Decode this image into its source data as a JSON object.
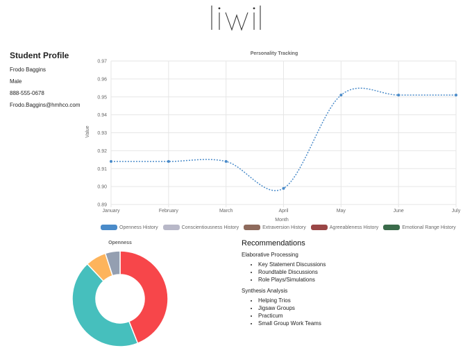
{
  "profile": {
    "title": "Student Profile",
    "name": "Frodo Baggins",
    "gender": "Male",
    "phone": "888-555-0678",
    "email": "Frodo.Baggins@hmhco.com"
  },
  "legend": [
    {
      "label": "Openness History",
      "color": "#4a8bc9"
    },
    {
      "label": "Conscientiousness History",
      "color": "#b8b8c8"
    },
    {
      "label": "Extraversion History",
      "color": "#8e6a5c"
    },
    {
      "label": "Agreeableness History",
      "color": "#9a4646"
    },
    {
      "label": "Emotional Range History",
      "color": "#3a6b4a"
    }
  ],
  "recommendations": {
    "title": "Recommendations",
    "groups": [
      {
        "name": "Elaborative Processing",
        "items": [
          "Key Statement Discussions",
          "Roundtable Discussions",
          "Role Plays/Simulations"
        ]
      },
      {
        "name": "Synthesis Analysis",
        "items": [
          "Helping Trios",
          "Jigsaw Groups",
          "Practicum",
          "Small Group Work Teams"
        ]
      }
    ]
  },
  "chart_data": [
    {
      "type": "line",
      "title": "Personality Tracking",
      "xlabel": "Month",
      "ylabel": "Value",
      "categories": [
        "January",
        "February",
        "March",
        "April",
        "May",
        "June",
        "July"
      ],
      "series": [
        {
          "name": "Openness History",
          "values": [
            0.914,
            0.914,
            0.914,
            0.899,
            0.951,
            0.951,
            0.951
          ],
          "color": "#4a8bc9"
        }
      ],
      "ylim": [
        0.89,
        0.97
      ],
      "yticks": [
        "0.97",
        "0.96",
        "0.95",
        "0.94",
        "0.93",
        "0.92",
        "0.91",
        "0.90",
        "0.89"
      ],
      "grid": true,
      "legend": "bottom"
    },
    {
      "type": "pie",
      "title": "Openness",
      "slices": [
        {
          "value": 44,
          "color": "#f7464a"
        },
        {
          "value": 44,
          "color": "#46bfbd"
        },
        {
          "value": 7,
          "color": "#fdb45c"
        },
        {
          "value": 5,
          "color": "#949fb1"
        }
      ]
    }
  ]
}
